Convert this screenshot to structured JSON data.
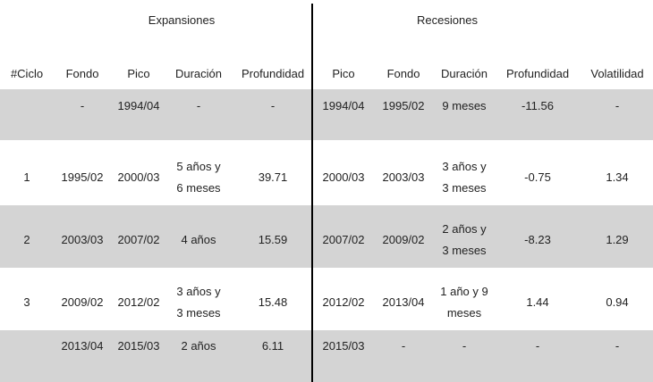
{
  "table": {
    "groups": [
      "Expansiones",
      "Recesiones"
    ],
    "columns": [
      "#Ciclo",
      "Fondo",
      "Pico",
      "Duración",
      "Profundidad",
      "Pico",
      "Fondo",
      "Duración",
      "Profundidad",
      "Volatilidad"
    ],
    "rows": [
      [
        null,
        "-",
        "1994/04",
        "-",
        "-",
        "1994/04",
        "1995/02",
        "9 meses",
        "-11.56",
        "-"
      ],
      [
        "1",
        "1995/02",
        "2000/03",
        [
          "5 años y",
          "6 meses"
        ],
        "39.71",
        "2000/03",
        "2003/03",
        [
          "3 años y",
          "3 meses"
        ],
        "-0.75",
        "1.34"
      ],
      [
        "2",
        "2003/03",
        "2007/02",
        "4 años",
        "15.59",
        "2007/02",
        "2009/02",
        [
          "2 años y",
          "3 meses"
        ],
        "-8.23",
        "1.29"
      ],
      [
        "3",
        "2009/02",
        "2012/02",
        [
          "3 años y",
          "3 meses"
        ],
        "15.48",
        "2012/02",
        "2013/04",
        [
          "1 año y 9",
          "meses"
        ],
        "1.44",
        "0.94"
      ],
      [
        null,
        "2013/04",
        "2015/03",
        "2 años",
        "6.11",
        "2015/03",
        "-",
        "-",
        "-",
        "-"
      ]
    ]
  }
}
